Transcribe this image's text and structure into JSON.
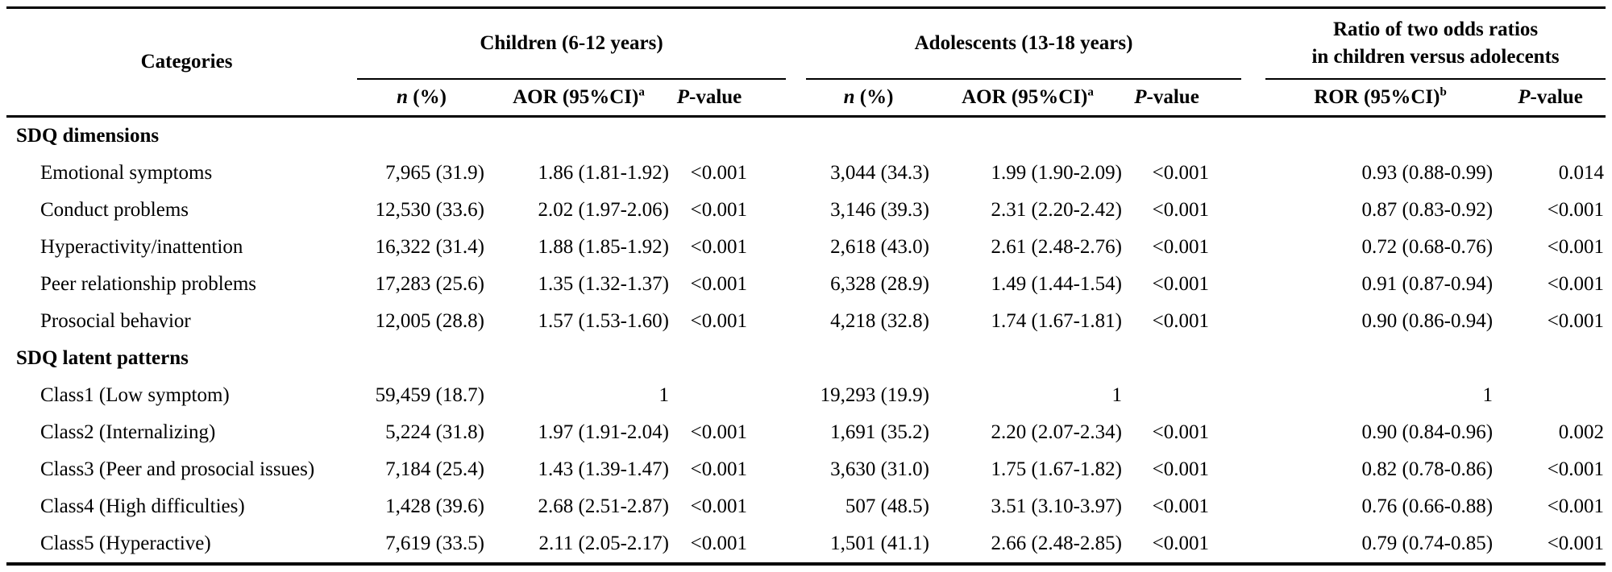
{
  "table": {
    "categories_header": "Categories",
    "groups": {
      "children": {
        "title": "Children (6-12 years)"
      },
      "adolescents": {
        "title": "Adolescents (13-18 years)"
      },
      "ratio": {
        "title_line1": "Ratio of two odds ratios",
        "title_line2": "in children versus adolecents"
      }
    },
    "subheaders": {
      "n": {
        "italic": "n",
        "rest": " (%)"
      },
      "aor": {
        "text": "AOR (95%CI)",
        "sup": "a"
      },
      "p": {
        "italic": "P",
        "rest": "-value"
      },
      "ror": {
        "text": "ROR (95%CI)",
        "sup": "b"
      }
    },
    "sections": [
      {
        "label": "SDQ dimensions",
        "rows": [
          {
            "category": "Emotional symptoms",
            "c_n": "7,965 (31.9)",
            "c_aor": "1.86 (1.81-1.92)",
            "c_p": "<0.001",
            "a_n": "3,044 (34.3)",
            "a_aor": "1.99 (1.90-2.09)",
            "a_p": "<0.001",
            "ror": "0.93 (0.88-0.99)",
            "r_p": "0.014"
          },
          {
            "category": "Conduct problems",
            "c_n": "12,530 (33.6)",
            "c_aor": "2.02 (1.97-2.06)",
            "c_p": "<0.001",
            "a_n": "3,146 (39.3)",
            "a_aor": "2.31 (2.20-2.42)",
            "a_p": "<0.001",
            "ror": "0.87 (0.83-0.92)",
            "r_p": "<0.001"
          },
          {
            "category": "Hyperactivity/inattention",
            "c_n": "16,322 (31.4)",
            "c_aor": "1.88 (1.85-1.92)",
            "c_p": "<0.001",
            "a_n": "2,618 (43.0)",
            "a_aor": "2.61 (2.48-2.76)",
            "a_p": "<0.001",
            "ror": "0.72 (0.68-0.76)",
            "r_p": "<0.001"
          },
          {
            "category": "Peer relationship problems",
            "c_n": "17,283 (25.6)",
            "c_aor": "1.35 (1.32-1.37)",
            "c_p": "<0.001",
            "a_n": "6,328 (28.9)",
            "a_aor": "1.49 (1.44-1.54)",
            "a_p": "<0.001",
            "ror": "0.91 (0.87-0.94)",
            "r_p": "<0.001"
          },
          {
            "category": "Prosocial behavior",
            "c_n": "12,005 (28.8)",
            "c_aor": "1.57 (1.53-1.60)",
            "c_p": "<0.001",
            "a_n": "4,218 (32.8)",
            "a_aor": "1.74 (1.67-1.81)",
            "a_p": "<0.001",
            "ror": "0.90 (0.86-0.94)",
            "r_p": "<0.001"
          }
        ]
      },
      {
        "label": "SDQ latent patterns",
        "rows": [
          {
            "category": "Class1 (Low symptom)",
            "c_n": "59,459 (18.7)",
            "c_aor": "1",
            "c_p": "",
            "a_n": "19,293 (19.9)",
            "a_aor": "1",
            "a_p": "",
            "ror": "1",
            "r_p": ""
          },
          {
            "category": "Class2 (Internalizing)",
            "c_n": "5,224 (31.8)",
            "c_aor": "1.97 (1.91-2.04)",
            "c_p": "<0.001",
            "a_n": "1,691 (35.2)",
            "a_aor": "2.20 (2.07-2.34)",
            "a_p": "<0.001",
            "ror": "0.90 (0.84-0.96)",
            "r_p": "0.002"
          },
          {
            "category": "Class3 (Peer and prosocial issues)",
            "c_n": "7,184 (25.4)",
            "c_aor": "1.43 (1.39-1.47)",
            "c_p": "<0.001",
            "a_n": "3,630 (31.0)",
            "a_aor": "1.75 (1.67-1.82)",
            "a_p": "<0.001",
            "ror": "0.82 (0.78-0.86)",
            "r_p": "<0.001"
          },
          {
            "category": "Class4 (High difficulties)",
            "c_n": "1,428 (39.6)",
            "c_aor": "2.68 (2.51-2.87)",
            "c_p": "<0.001",
            "a_n": "507 (48.5)",
            "a_aor": "3.51 (3.10-3.97)",
            "a_p": "<0.001",
            "ror": "0.76 (0.66-0.88)",
            "r_p": "<0.001"
          },
          {
            "category": "Class5 (Hyperactive)",
            "c_n": "7,619 (33.5)",
            "c_aor": "2.11 (2.05-2.17)",
            "c_p": "<0.001",
            "a_n": "1,501 (41.1)",
            "a_aor": "2.66 (2.48-2.85)",
            "a_p": "<0.001",
            "ror": "0.79 (0.74-0.85)",
            "r_p": "<0.001"
          }
        ]
      }
    ]
  }
}
